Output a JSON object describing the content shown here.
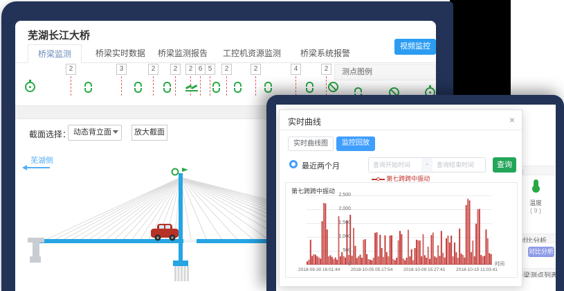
{
  "w1": {
    "title": "芜湖长江大桥",
    "tabs": [
      "桥梁监测",
      "桥梁实时数据",
      "桥梁监测报告",
      "工控机资源监测",
      "桥梁系统报警"
    ],
    "video_button": "视频监控",
    "strip": {
      "badges": [
        "2",
        "3",
        "2",
        "2",
        "2",
        "6",
        "5",
        "2",
        "2",
        "4",
        "2"
      ]
    },
    "legend_panel_title": "测点图例",
    "section_select_label": "截面选择：",
    "section_select_value": "动态背立面",
    "zoom_section_button": "放大截面",
    "bank_label": "芜湖侧"
  },
  "w2": {
    "panel": {
      "legend_title": "测点图例",
      "temperature_label": "温度",
      "temperature_count": "( 9 )",
      "compare_section": "对比分析",
      "compare_button": "对比分析",
      "list_section": "桥梁测点列表"
    },
    "modal": {
      "title": "实时曲线",
      "close": "×",
      "tab_curve": "实时曲线图",
      "tab_playback": "监控回放",
      "radio_label": "最近两个月",
      "start_placeholder": "查询开始时间",
      "separator": "-",
      "end_placeholder": "查询结束时间",
      "search_button": "查询",
      "legend_label": "第七跨跨中振动"
    }
  },
  "chart_data": {
    "type": "bar",
    "title": "第七跨跨中振动",
    "series": [
      {
        "name": "第七跨跨中振动",
        "values": [
          120,
          180,
          900,
          320,
          380,
          360,
          300,
          260,
          220,
          1570,
          2230,
          2210,
          1270,
          300,
          340,
          280,
          200,
          260,
          180,
          1750,
          300,
          450,
          310,
          260,
          1600,
          350,
          1800,
          320,
          1330,
          680,
          240,
          300,
          360,
          250,
          900,
          920,
          380,
          200,
          180,
          160,
          250,
          1150,
          1170,
          300,
          1080,
          600,
          280,
          1060,
          450,
          300,
          1050,
          1060,
          200,
          160,
          250,
          880,
          1220,
          1100,
          220,
          160,
          250,
          1260,
          300,
          560,
          160,
          600,
          900,
          880,
          870,
          300,
          1100,
          340,
          250,
          650,
          210,
          1070,
          1160,
          300,
          260,
          700,
          320,
          1220,
          430,
          260,
          950,
          1050,
          800,
          1050,
          300,
          800,
          450,
          250,
          1300,
          400,
          350,
          260,
          2150,
          2380,
          2320,
          450,
          870,
          300,
          1480,
          2000,
          2010,
          350,
          300,
          320,
          1270,
          950,
          420,
          380
        ]
      }
    ],
    "ylim": [
      0,
      2500
    ],
    "y_ticks": [
      "2,500",
      "2,000",
      "1,500",
      "1,000",
      "500",
      "0"
    ],
    "x_tick_labels": [
      "2018-09-30 16:01:44",
      "2018-10-05 05:17:54",
      "2018-10-09 15:27:41",
      "2018-10-15 11:03:41"
    ],
    "xlabel": "时间",
    "grid": true,
    "legend_position": "top",
    "color": "#c23531"
  }
}
